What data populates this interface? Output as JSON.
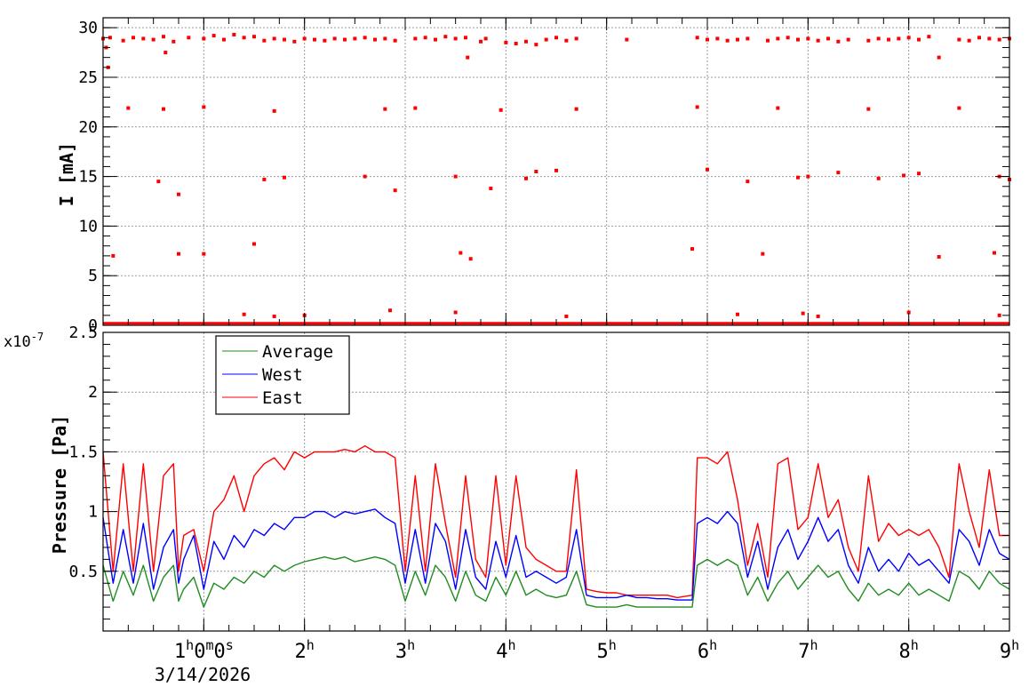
{
  "chart_data": [
    {
      "type": "scatter",
      "ylabel": "I [mA]",
      "ylim": [
        0,
        31
      ],
      "xlim": [
        0,
        9
      ],
      "grid": true,
      "yticks": [
        "0",
        "5",
        "10",
        "15",
        "20",
        "25",
        "30"
      ],
      "series": [
        {
          "color": "#ff0000",
          "x": [
            0.0,
            0.03,
            0.05,
            0.07,
            0.1,
            0.2,
            0.3,
            0.4,
            0.5,
            0.6,
            0.62,
            0.7,
            0.85,
            1.0,
            1.1,
            1.2,
            1.3,
            1.4,
            1.5,
            1.6,
            1.7,
            1.8,
            1.9,
            2.0,
            2.1,
            2.2,
            2.3,
            2.4,
            2.5,
            2.6,
            2.7,
            2.8,
            2.9,
            3.1,
            3.2,
            3.3,
            3.4,
            3.5,
            3.6,
            3.62,
            3.75,
            3.8,
            4.0,
            4.1,
            4.2,
            4.3,
            4.4,
            4.5,
            4.6,
            4.7,
            5.2,
            5.9,
            6.0,
            6.1,
            6.2,
            6.3,
            6.4,
            6.6,
            6.7,
            6.8,
            6.9,
            7.0,
            7.1,
            7.2,
            7.3,
            7.4,
            7.6,
            7.7,
            7.8,
            7.9,
            8.0,
            8.1,
            8.2,
            8.3,
            8.5,
            8.6,
            8.7,
            8.8,
            8.9,
            9.0,
            0.25,
            0.6,
            1.0,
            1.7,
            2.8,
            3.1,
            3.95,
            4.7,
            5.9,
            6.7,
            7.6,
            8.5,
            0.55,
            0.75,
            1.6,
            1.8,
            2.6,
            2.9,
            3.5,
            3.85,
            4.2,
            4.3,
            4.5,
            6.0,
            6.4,
            6.9,
            7.0,
            7.3,
            7.7,
            7.95,
            8.1,
            8.9,
            9.0,
            0.75,
            1.0,
            1.5,
            3.55,
            3.65,
            5.85,
            6.55,
            8.3,
            8.85,
            1.4,
            1.7,
            2.0,
            2.85,
            3.5,
            4.6,
            6.3,
            6.95,
            7.1,
            8.0,
            8.9
          ],
          "y": [
            28.9,
            28.0,
            26.0,
            29.0,
            7.0,
            28.7,
            29.0,
            28.9,
            28.8,
            29.1,
            27.5,
            28.6,
            29.0,
            28.9,
            29.2,
            28.8,
            29.3,
            29.0,
            29.1,
            28.7,
            28.9,
            28.8,
            28.6,
            28.9,
            28.8,
            28.7,
            28.9,
            28.8,
            28.9,
            29.0,
            28.8,
            28.9,
            28.7,
            28.9,
            29.0,
            28.8,
            29.1,
            28.9,
            29.0,
            27.0,
            28.6,
            28.9,
            28.5,
            28.4,
            28.6,
            28.3,
            28.8,
            29.0,
            28.7,
            28.9,
            28.8,
            29.0,
            28.8,
            28.9,
            28.7,
            28.8,
            28.9,
            28.7,
            28.9,
            29.0,
            28.8,
            28.9,
            28.7,
            28.9,
            28.6,
            28.8,
            28.7,
            28.9,
            28.8,
            28.9,
            29.0,
            28.8,
            29.1,
            27.0,
            28.8,
            28.7,
            29.0,
            28.9,
            28.8,
            28.9,
            21.9,
            21.8,
            22.0,
            21.6,
            21.8,
            21.9,
            21.7,
            21.8,
            22.0,
            21.9,
            21.8,
            21.9,
            14.5,
            13.2,
            14.7,
            14.9,
            15.0,
            13.6,
            15.0,
            13.8,
            14.8,
            15.5,
            15.6,
            15.7,
            14.5,
            14.9,
            15.0,
            15.4,
            14.8,
            15.1,
            15.3,
            15.0,
            14.7,
            7.2,
            7.2,
            8.2,
            7.3,
            6.7,
            7.7,
            7.2,
            6.9,
            7.3,
            1.1,
            0.9,
            1.0,
            1.5,
            1.3,
            0.9,
            1.1,
            1.2,
            0.9,
            1.3,
            1.0
          ]
        }
      ]
    },
    {
      "type": "line",
      "xlabel": "",
      "ylabel": "Pressure [Pa]",
      "yexponent": "x10",
      "yexponent_sup": "-7",
      "ylim": [
        0.0,
        2.5
      ],
      "xlim": [
        0,
        9
      ],
      "grid": true,
      "legend_position": "top-left",
      "yticks": [
        "0.5",
        "1",
        "1.5",
        "2",
        "2.5"
      ],
      "xticks": [
        {
          "value": 1,
          "base": "1",
          "sup": "h",
          "mid": "0",
          "sup2": "m",
          "mid2": "0",
          "sup3": "s"
        },
        {
          "value": 2,
          "base": "2",
          "sup": "h"
        },
        {
          "value": 3,
          "base": "3",
          "sup": "h"
        },
        {
          "value": 4,
          "base": "4",
          "sup": "h"
        },
        {
          "value": 5,
          "base": "5",
          "sup": "h"
        },
        {
          "value": 6,
          "base": "6",
          "sup": "h"
        },
        {
          "value": 7,
          "base": "7",
          "sup": "h"
        },
        {
          "value": 8,
          "base": "8",
          "sup": "h"
        },
        {
          "value": 9,
          "base": "9",
          "sup": "h"
        }
      ],
      "date_label": "3/14/2026",
      "series": [
        {
          "name": "Average",
          "color": "#228b22",
          "x": [
            0.0,
            0.1,
            0.2,
            0.3,
            0.4,
            0.5,
            0.6,
            0.7,
            0.75,
            0.8,
            0.9,
            1.0,
            1.1,
            1.2,
            1.3,
            1.4,
            1.5,
            1.6,
            1.7,
            1.8,
            1.9,
            2.0,
            2.1,
            2.2,
            2.3,
            2.4,
            2.5,
            2.6,
            2.7,
            2.8,
            2.9,
            3.0,
            3.1,
            3.2,
            3.3,
            3.4,
            3.5,
            3.6,
            3.7,
            3.8,
            3.9,
            4.0,
            4.1,
            4.2,
            4.3,
            4.4,
            4.5,
            4.6,
            4.7,
            4.8,
            4.9,
            5.0,
            5.1,
            5.2,
            5.3,
            5.4,
            5.5,
            5.6,
            5.7,
            5.85,
            5.9,
            6.0,
            6.1,
            6.2,
            6.3,
            6.4,
            6.5,
            6.6,
            6.7,
            6.8,
            6.9,
            7.0,
            7.1,
            7.2,
            7.3,
            7.4,
            7.5,
            7.6,
            7.7,
            7.8,
            7.9,
            8.0,
            8.1,
            8.2,
            8.3,
            8.4,
            8.5,
            8.6,
            8.7,
            8.8,
            8.9,
            9.0
          ],
          "y": [
            0.55,
            0.25,
            0.5,
            0.3,
            0.55,
            0.25,
            0.45,
            0.55,
            0.25,
            0.35,
            0.45,
            0.2,
            0.4,
            0.35,
            0.45,
            0.4,
            0.5,
            0.45,
            0.55,
            0.5,
            0.55,
            0.58,
            0.6,
            0.62,
            0.6,
            0.62,
            0.58,
            0.6,
            0.62,
            0.6,
            0.55,
            0.25,
            0.5,
            0.3,
            0.55,
            0.45,
            0.25,
            0.5,
            0.3,
            0.25,
            0.45,
            0.3,
            0.5,
            0.3,
            0.35,
            0.3,
            0.28,
            0.3,
            0.5,
            0.22,
            0.2,
            0.2,
            0.2,
            0.22,
            0.2,
            0.2,
            0.2,
            0.2,
            0.2,
            0.2,
            0.55,
            0.6,
            0.55,
            0.6,
            0.55,
            0.3,
            0.45,
            0.25,
            0.4,
            0.5,
            0.35,
            0.45,
            0.55,
            0.45,
            0.5,
            0.35,
            0.25,
            0.4,
            0.3,
            0.35,
            0.3,
            0.4,
            0.3,
            0.35,
            0.3,
            0.25,
            0.5,
            0.45,
            0.35,
            0.5,
            0.4,
            0.35
          ]
        },
        {
          "name": "West",
          "color": "#0000ff",
          "x": [
            0.0,
            0.1,
            0.2,
            0.3,
            0.4,
            0.5,
            0.6,
            0.7,
            0.75,
            0.8,
            0.9,
            1.0,
            1.1,
            1.2,
            1.3,
            1.4,
            1.5,
            1.6,
            1.7,
            1.8,
            1.9,
            2.0,
            2.1,
            2.2,
            2.3,
            2.4,
            2.5,
            2.6,
            2.7,
            2.8,
            2.9,
            3.0,
            3.1,
            3.2,
            3.3,
            3.4,
            3.5,
            3.6,
            3.7,
            3.8,
            3.9,
            4.0,
            4.1,
            4.2,
            4.3,
            4.4,
            4.5,
            4.6,
            4.7,
            4.8,
            4.9,
            5.0,
            5.1,
            5.2,
            5.3,
            5.4,
            5.5,
            5.6,
            5.7,
            5.85,
            5.9,
            6.0,
            6.1,
            6.2,
            6.3,
            6.4,
            6.5,
            6.6,
            6.7,
            6.8,
            6.9,
            7.0,
            7.1,
            7.2,
            7.3,
            7.4,
            7.5,
            7.6,
            7.7,
            7.8,
            7.9,
            8.0,
            8.1,
            8.2,
            8.3,
            8.4,
            8.5,
            8.6,
            8.7,
            8.8,
            8.9,
            9.0
          ],
          "y": [
            0.95,
            0.4,
            0.85,
            0.4,
            0.9,
            0.35,
            0.7,
            0.85,
            0.4,
            0.6,
            0.8,
            0.35,
            0.75,
            0.6,
            0.8,
            0.7,
            0.85,
            0.8,
            0.9,
            0.85,
            0.95,
            0.95,
            1.0,
            1.0,
            0.95,
            1.0,
            0.98,
            1.0,
            1.02,
            0.95,
            0.9,
            0.4,
            0.85,
            0.4,
            0.9,
            0.75,
            0.35,
            0.85,
            0.45,
            0.35,
            0.75,
            0.45,
            0.8,
            0.45,
            0.5,
            0.45,
            0.4,
            0.45,
            0.85,
            0.3,
            0.28,
            0.28,
            0.28,
            0.3,
            0.28,
            0.28,
            0.27,
            0.27,
            0.26,
            0.26,
            0.9,
            0.95,
            0.9,
            1.0,
            0.9,
            0.45,
            0.75,
            0.35,
            0.7,
            0.85,
            0.6,
            0.75,
            0.95,
            0.75,
            0.85,
            0.55,
            0.4,
            0.7,
            0.5,
            0.6,
            0.5,
            0.65,
            0.55,
            0.6,
            0.5,
            0.4,
            0.85,
            0.75,
            0.55,
            0.85,
            0.65,
            0.6
          ]
        },
        {
          "name": "East",
          "color": "#ff0000",
          "x": [
            0.0,
            0.1,
            0.2,
            0.3,
            0.4,
            0.5,
            0.6,
            0.7,
            0.75,
            0.8,
            0.9,
            1.0,
            1.1,
            1.2,
            1.3,
            1.4,
            1.5,
            1.6,
            1.7,
            1.8,
            1.9,
            2.0,
            2.1,
            2.2,
            2.3,
            2.4,
            2.5,
            2.6,
            2.7,
            2.8,
            2.9,
            3.0,
            3.1,
            3.2,
            3.3,
            3.4,
            3.5,
            3.6,
            3.7,
            3.8,
            3.9,
            4.0,
            4.1,
            4.2,
            4.3,
            4.4,
            4.5,
            4.6,
            4.7,
            4.8,
            4.9,
            5.0,
            5.1,
            5.2,
            5.3,
            5.4,
            5.5,
            5.6,
            5.7,
            5.85,
            5.9,
            6.0,
            6.1,
            6.2,
            6.3,
            6.4,
            6.5,
            6.6,
            6.7,
            6.8,
            6.9,
            7.0,
            7.1,
            7.2,
            7.3,
            7.4,
            7.5,
            7.6,
            7.7,
            7.8,
            7.9,
            8.0,
            8.1,
            8.2,
            8.3,
            8.4,
            8.5,
            8.6,
            8.7,
            8.8,
            8.9,
            9.0
          ],
          "y": [
            1.5,
            0.5,
            1.4,
            0.5,
            1.4,
            0.5,
            1.3,
            1.4,
            0.5,
            0.8,
            0.85,
            0.5,
            1.0,
            1.1,
            1.3,
            1.0,
            1.3,
            1.4,
            1.45,
            1.35,
            1.5,
            1.45,
            1.5,
            1.5,
            1.5,
            1.52,
            1.5,
            1.55,
            1.5,
            1.5,
            1.45,
            0.5,
            1.3,
            0.5,
            1.4,
            0.9,
            0.45,
            1.3,
            0.6,
            0.45,
            1.3,
            0.55,
            1.3,
            0.7,
            0.6,
            0.55,
            0.5,
            0.5,
            1.35,
            0.35,
            0.33,
            0.32,
            0.32,
            0.3,
            0.3,
            0.3,
            0.3,
            0.3,
            0.28,
            0.3,
            1.45,
            1.45,
            1.4,
            1.5,
            1.1,
            0.55,
            0.9,
            0.45,
            1.4,
            1.45,
            0.85,
            0.95,
            1.4,
            0.95,
            1.1,
            0.7,
            0.5,
            1.3,
            0.75,
            0.9,
            0.8,
            0.85,
            0.8,
            0.85,
            0.7,
            0.45,
            1.4,
            1.0,
            0.7,
            1.35,
            0.8,
            0.8
          ]
        }
      ]
    }
  ]
}
